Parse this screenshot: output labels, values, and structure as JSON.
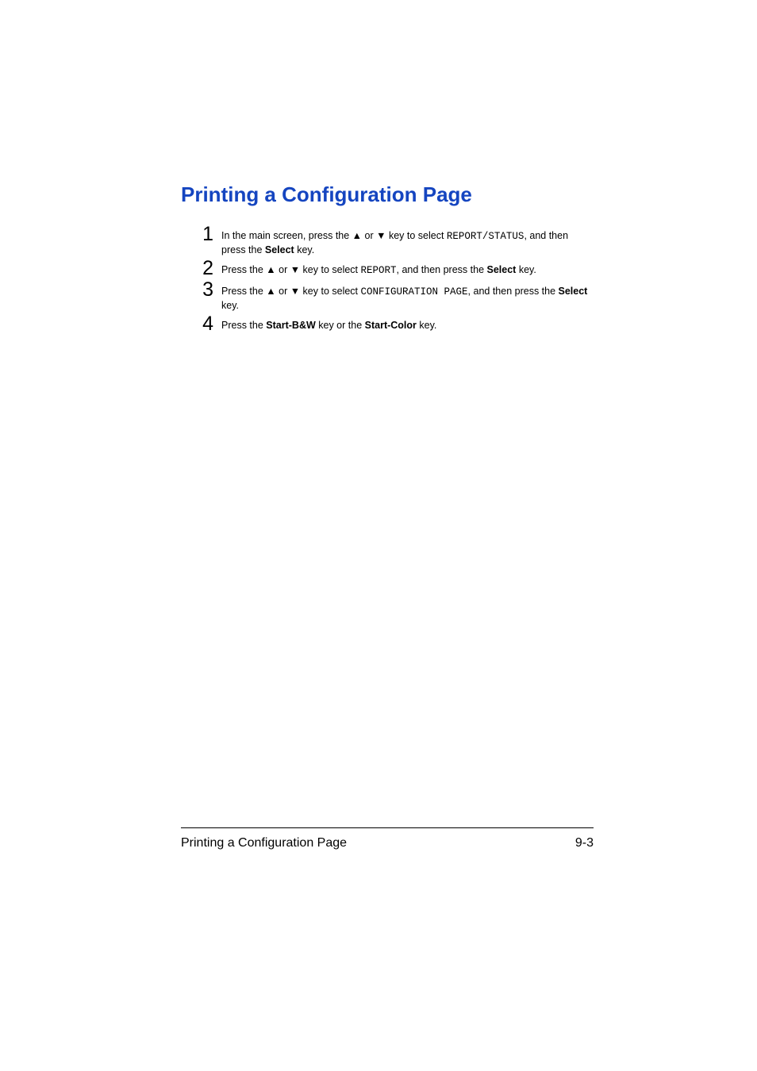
{
  "heading": "Printing a Configuration Page",
  "steps": {
    "s1": {
      "num": "1",
      "pre": "In the main screen, press the ▲ or ▼ key to select ",
      "mono": "REPORT/STATUS",
      "mid": ", and then press the ",
      "bold": "Select",
      "post": " key."
    },
    "s2": {
      "num": "2",
      "pre": "Press the ▲ or ▼ key to select ",
      "mono": "REPORT",
      "mid": ", and then press the ",
      "bold": "Select",
      "post": " key."
    },
    "s3": {
      "num": "3",
      "pre": "Press the ▲ or ▼ key to select ",
      "mono": "CONFIGURATION PAGE",
      "mid": ", and then press the ",
      "bold": "Select",
      "post": " key."
    },
    "s4": {
      "num": "4",
      "pre": "Press the ",
      "bold1": "Start-B&W",
      "mid": " key or the ",
      "bold2": "Start-Color",
      "post": " key."
    }
  },
  "footer": {
    "title": "Printing a Configuration Page",
    "page": "9-3"
  }
}
